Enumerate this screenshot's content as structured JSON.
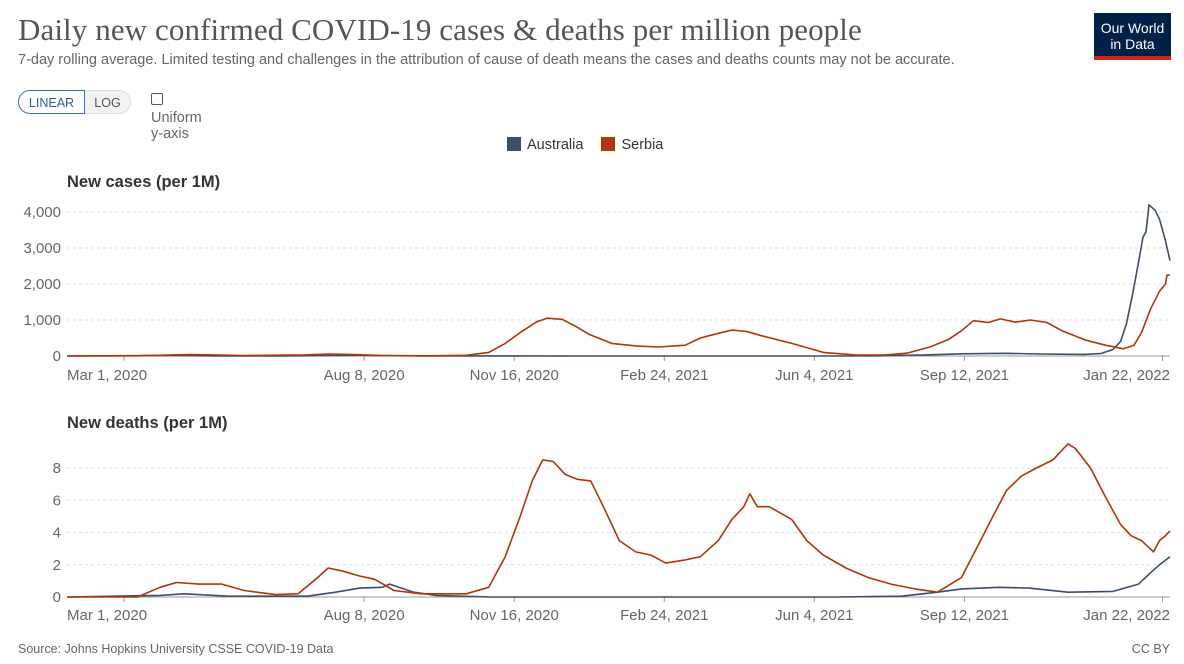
{
  "header": {
    "title": "Daily new confirmed COVID-19 cases & deaths per million people",
    "subtitle": "7-day rolling average. Limited testing and challenges in the attribution of cause of death means the cases and deaths counts may not be accurate.",
    "logo_line1": "Our World",
    "logo_line2": "in Data"
  },
  "controls": {
    "linear_label": "LINEAR",
    "log_label": "LOG",
    "uniform_label": "Uniform y-axis",
    "selected_scale": "linear"
  },
  "legend": {
    "items": [
      {
        "label": "Australia",
        "color": "#3c4e6b"
      },
      {
        "label": "Serbia",
        "color": "#b13507"
      }
    ]
  },
  "footer": {
    "source": "Source: Johns Hopkins University CSSE COVID-19 Data",
    "license": "CC BY"
  },
  "chart_data": [
    {
      "type": "line",
      "title": "New cases (per 1M)",
      "x_ticks": [
        "Mar 1, 2020",
        "Aug 8, 2020",
        "Nov 16, 2020",
        "Feb 24, 2021",
        "Jun 4, 2021",
        "Sep 12, 2021",
        "Jan 22, 2022"
      ],
      "y_ticks": [
        "0",
        "1,000",
        "2,000",
        "3,000",
        "4,000"
      ],
      "ylim": [
        0,
        4000
      ],
      "xlim": [
        "2020-01-23",
        "2022-01-27"
      ],
      "grid": true,
      "series": [
        {
          "name": "Australia",
          "color": "#3c4e6b",
          "points": [
            [
              "2020-01-23",
              0
            ],
            [
              "2020-03-20",
              10
            ],
            [
              "2020-04-01",
              15
            ],
            [
              "2020-05-01",
              1
            ],
            [
              "2020-06-15",
              2
            ],
            [
              "2020-07-10",
              12
            ],
            [
              "2020-08-05",
              20
            ],
            [
              "2020-08-20",
              10
            ],
            [
              "2020-09-15",
              2
            ],
            [
              "2021-01-01",
              1
            ],
            [
              "2021-06-20",
              1
            ],
            [
              "2021-07-15",
              5
            ],
            [
              "2021-08-15",
              25
            ],
            [
              "2021-09-10",
              60
            ],
            [
              "2021-10-10",
              75
            ],
            [
              "2021-11-01",
              55
            ],
            [
              "2021-12-01",
              45
            ],
            [
              "2021-12-12",
              70
            ],
            [
              "2021-12-20",
              180
            ],
            [
              "2021-12-25",
              400
            ],
            [
              "2021-12-29",
              900
            ],
            [
              "2022-01-02",
              1700
            ],
            [
              "2022-01-06",
              2600
            ],
            [
              "2022-01-09",
              3300
            ],
            [
              "2022-01-11",
              3450
            ],
            [
              "2022-01-13",
              4200
            ],
            [
              "2022-01-17",
              4050
            ],
            [
              "2022-01-20",
              3800
            ],
            [
              "2022-01-24",
              3200
            ],
            [
              "2022-01-27",
              2650
            ]
          ]
        },
        {
          "name": "Serbia",
          "color": "#b13507",
          "points": [
            [
              "2020-01-23",
              0
            ],
            [
              "2020-03-10",
              5
            ],
            [
              "2020-04-15",
              40
            ],
            [
              "2020-05-20",
              15
            ],
            [
              "2020-06-30",
              30
            ],
            [
              "2020-07-15",
              55
            ],
            [
              "2020-08-01",
              40
            ],
            [
              "2020-08-20",
              15
            ],
            [
              "2020-09-20",
              5
            ],
            [
              "2020-10-15",
              20
            ],
            [
              "2020-10-30",
              100
            ],
            [
              "2020-11-10",
              350
            ],
            [
              "2020-11-20",
              650
            ],
            [
              "2020-12-01",
              950
            ],
            [
              "2020-12-08",
              1050
            ],
            [
              "2020-12-18",
              1020
            ],
            [
              "2020-12-28",
              800
            ],
            [
              "2021-01-05",
              600
            ],
            [
              "2021-01-20",
              350
            ],
            [
              "2021-02-05",
              280
            ],
            [
              "2021-02-20",
              250
            ],
            [
              "2021-03-10",
              300
            ],
            [
              "2021-03-20",
              500
            ],
            [
              "2021-04-01",
              630
            ],
            [
              "2021-04-10",
              720
            ],
            [
              "2021-04-20",
              680
            ],
            [
              "2021-05-01",
              550
            ],
            [
              "2021-05-20",
              350
            ],
            [
              "2021-06-10",
              100
            ],
            [
              "2021-07-01",
              30
            ],
            [
              "2021-07-20",
              25
            ],
            [
              "2021-08-05",
              80
            ],
            [
              "2021-08-20",
              250
            ],
            [
              "2021-09-01",
              450
            ],
            [
              "2021-09-10",
              700
            ],
            [
              "2021-09-18",
              980
            ],
            [
              "2021-09-28",
              930
            ],
            [
              "2021-10-06",
              1030
            ],
            [
              "2021-10-16",
              940
            ],
            [
              "2021-10-26",
              1000
            ],
            [
              "2021-11-06",
              930
            ],
            [
              "2021-11-16",
              700
            ],
            [
              "2021-12-01",
              450
            ],
            [
              "2021-12-15",
              300
            ],
            [
              "2021-12-27",
              200
            ],
            [
              "2022-01-03",
              300
            ],
            [
              "2022-01-08",
              650
            ],
            [
              "2022-01-14",
              1300
            ],
            [
              "2022-01-20",
              1800
            ],
            [
              "2022-01-24",
              2000
            ],
            [
              "2022-01-25",
              2250
            ],
            [
              "2022-01-27",
              2250
            ]
          ]
        }
      ]
    },
    {
      "type": "line",
      "title": "New deaths (per 1M)",
      "x_ticks": [
        "Mar 1, 2020",
        "Aug 8, 2020",
        "Nov 16, 2020",
        "Feb 24, 2021",
        "Jun 4, 2021",
        "Sep 12, 2021",
        "Jan 22, 2022"
      ],
      "y_ticks": [
        "0",
        "2",
        "4",
        "6",
        "8"
      ],
      "ylim": [
        0,
        9.6
      ],
      "xlim": [
        "2020-01-23",
        "2022-01-27"
      ],
      "grid": true,
      "series": [
        {
          "name": "Australia",
          "color": "#3c4e6b",
          "points": [
            [
              "2020-01-23",
              0
            ],
            [
              "2020-03-25",
              0.1
            ],
            [
              "2020-04-10",
              0.2
            ],
            [
              "2020-05-10",
              0.05
            ],
            [
              "2020-07-01",
              0.05
            ],
            [
              "2020-07-20",
              0.3
            ],
            [
              "2020-08-05",
              0.55
            ],
            [
              "2020-08-20",
              0.6
            ],
            [
              "2020-08-25",
              0.8
            ],
            [
              "2020-09-10",
              0.3
            ],
            [
              "2020-09-25",
              0.1
            ],
            [
              "2020-11-01",
              0
            ],
            [
              "2021-06-20",
              0
            ],
            [
              "2021-08-01",
              0.05
            ],
            [
              "2021-08-25",
              0.3
            ],
            [
              "2021-09-10",
              0.5
            ],
            [
              "2021-10-05",
              0.6
            ],
            [
              "2021-10-25",
              0.55
            ],
            [
              "2021-11-20",
              0.3
            ],
            [
              "2021-12-20",
              0.35
            ],
            [
              "2022-01-06",
              0.8
            ],
            [
              "2022-01-14",
              1.5
            ],
            [
              "2022-01-20",
              2.0
            ],
            [
              "2022-01-27",
              2.5
            ]
          ]
        },
        {
          "name": "Serbia",
          "color": "#b13507",
          "points": [
            [
              "2020-01-23",
              0
            ],
            [
              "2020-03-10",
              0
            ],
            [
              "2020-03-25",
              0.6
            ],
            [
              "2020-04-05",
              0.9
            ],
            [
              "2020-04-20",
              0.8
            ],
            [
              "2020-05-05",
              0.8
            ],
            [
              "2020-05-20",
              0.4
            ],
            [
              "2020-06-10",
              0.15
            ],
            [
              "2020-06-25",
              0.2
            ],
            [
              "2020-07-08",
              1.2
            ],
            [
              "2020-07-15",
              1.8
            ],
            [
              "2020-07-25",
              1.6
            ],
            [
              "2020-08-05",
              1.3
            ],
            [
              "2020-08-15",
              1.1
            ],
            [
              "2020-08-28",
              0.4
            ],
            [
              "2020-09-15",
              0.2
            ],
            [
              "2020-10-15",
              0.2
            ],
            [
              "2020-10-30",
              0.6
            ],
            [
              "2020-11-10",
              2.5
            ],
            [
              "2020-11-20",
              5.0
            ],
            [
              "2020-11-28",
              7.2
            ],
            [
              "2020-12-05",
              8.5
            ],
            [
              "2020-12-12",
              8.4
            ],
            [
              "2020-12-20",
              7.6
            ],
            [
              "2020-12-28",
              7.3
            ],
            [
              "2021-01-06",
              7.2
            ],
            [
              "2021-01-15",
              5.5
            ],
            [
              "2021-01-25",
              3.5
            ],
            [
              "2021-02-05",
              2.8
            ],
            [
              "2021-02-15",
              2.6
            ],
            [
              "2021-02-25",
              2.1
            ],
            [
              "2021-03-10",
              2.3
            ],
            [
              "2021-03-20",
              2.5
            ],
            [
              "2021-04-01",
              3.5
            ],
            [
              "2021-04-10",
              4.8
            ],
            [
              "2021-04-18",
              5.6
            ],
            [
              "2021-04-22",
              6.4
            ],
            [
              "2021-04-27",
              5.6
            ],
            [
              "2021-05-05",
              5.6
            ],
            [
              "2021-05-20",
              4.8
            ],
            [
              "2021-05-30",
              3.5
            ],
            [
              "2021-06-10",
              2.6
            ],
            [
              "2021-06-25",
              1.8
            ],
            [
              "2021-07-10",
              1.2
            ],
            [
              "2021-07-25",
              0.8
            ],
            [
              "2021-08-10",
              0.5
            ],
            [
              "2021-08-25",
              0.3
            ],
            [
              "2021-09-10",
              1.2
            ],
            [
              "2021-09-20",
              3.0
            ],
            [
              "2021-10-01",
              5.0
            ],
            [
              "2021-10-10",
              6.6
            ],
            [
              "2021-10-20",
              7.5
            ],
            [
              "2021-10-30",
              8.0
            ],
            [
              "2021-11-10",
              8.5
            ],
            [
              "2021-11-20",
              9.5
            ],
            [
              "2021-11-25",
              9.2
            ],
            [
              "2021-12-05",
              8.0
            ],
            [
              "2021-12-15",
              6.2
            ],
            [
              "2021-12-25",
              4.5
            ],
            [
              "2022-01-01",
              3.8
            ],
            [
              "2022-01-08",
              3.5
            ],
            [
              "2022-01-16",
              2.8
            ],
            [
              "2022-01-20",
              3.5
            ],
            [
              "2022-01-24",
              3.8
            ],
            [
              "2022-01-27",
              4.1
            ]
          ]
        }
      ]
    }
  ]
}
